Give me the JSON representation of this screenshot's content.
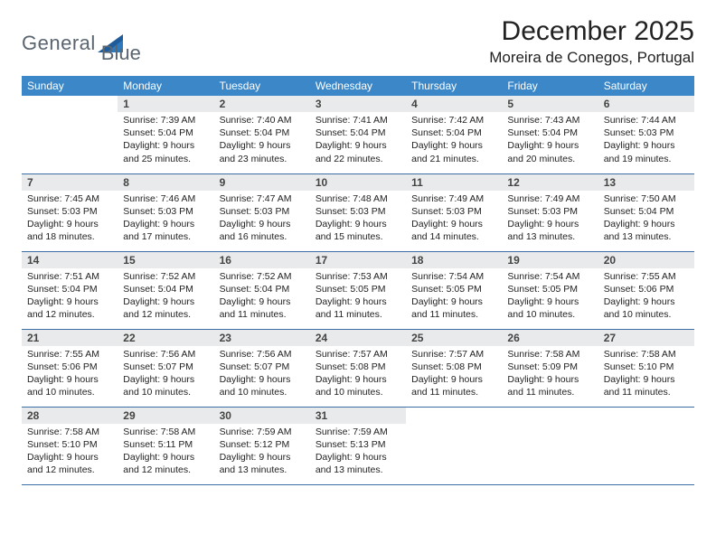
{
  "brand": {
    "name_left": "General",
    "name_right": "Blue"
  },
  "title": "December 2025",
  "location": "Moreira de Conegos, Portugal",
  "colors": {
    "header_bg": "#3b87c8",
    "header_fg": "#ffffff",
    "daynum_bg": "#e9eaeb",
    "row_border": "#3b6ea5",
    "logo_text": "#5a6570",
    "logo_tri1": "#1f5c99",
    "logo_tri2": "#2f79bd"
  },
  "weekdays": [
    "Sunday",
    "Monday",
    "Tuesday",
    "Wednesday",
    "Thursday",
    "Friday",
    "Saturday"
  ],
  "weeks": [
    [
      null,
      {
        "n": "1",
        "sr": "Sunrise: 7:39 AM",
        "ss": "Sunset: 5:04 PM",
        "d1": "Daylight: 9 hours",
        "d2": "and 25 minutes."
      },
      {
        "n": "2",
        "sr": "Sunrise: 7:40 AM",
        "ss": "Sunset: 5:04 PM",
        "d1": "Daylight: 9 hours",
        "d2": "and 23 minutes."
      },
      {
        "n": "3",
        "sr": "Sunrise: 7:41 AM",
        "ss": "Sunset: 5:04 PM",
        "d1": "Daylight: 9 hours",
        "d2": "and 22 minutes."
      },
      {
        "n": "4",
        "sr": "Sunrise: 7:42 AM",
        "ss": "Sunset: 5:04 PM",
        "d1": "Daylight: 9 hours",
        "d2": "and 21 minutes."
      },
      {
        "n": "5",
        "sr": "Sunrise: 7:43 AM",
        "ss": "Sunset: 5:04 PM",
        "d1": "Daylight: 9 hours",
        "d2": "and 20 minutes."
      },
      {
        "n": "6",
        "sr": "Sunrise: 7:44 AM",
        "ss": "Sunset: 5:03 PM",
        "d1": "Daylight: 9 hours",
        "d2": "and 19 minutes."
      }
    ],
    [
      {
        "n": "7",
        "sr": "Sunrise: 7:45 AM",
        "ss": "Sunset: 5:03 PM",
        "d1": "Daylight: 9 hours",
        "d2": "and 18 minutes."
      },
      {
        "n": "8",
        "sr": "Sunrise: 7:46 AM",
        "ss": "Sunset: 5:03 PM",
        "d1": "Daylight: 9 hours",
        "d2": "and 17 minutes."
      },
      {
        "n": "9",
        "sr": "Sunrise: 7:47 AM",
        "ss": "Sunset: 5:03 PM",
        "d1": "Daylight: 9 hours",
        "d2": "and 16 minutes."
      },
      {
        "n": "10",
        "sr": "Sunrise: 7:48 AM",
        "ss": "Sunset: 5:03 PM",
        "d1": "Daylight: 9 hours",
        "d2": "and 15 minutes."
      },
      {
        "n": "11",
        "sr": "Sunrise: 7:49 AM",
        "ss": "Sunset: 5:03 PM",
        "d1": "Daylight: 9 hours",
        "d2": "and 14 minutes."
      },
      {
        "n": "12",
        "sr": "Sunrise: 7:49 AM",
        "ss": "Sunset: 5:03 PM",
        "d1": "Daylight: 9 hours",
        "d2": "and 13 minutes."
      },
      {
        "n": "13",
        "sr": "Sunrise: 7:50 AM",
        "ss": "Sunset: 5:04 PM",
        "d1": "Daylight: 9 hours",
        "d2": "and 13 minutes."
      }
    ],
    [
      {
        "n": "14",
        "sr": "Sunrise: 7:51 AM",
        "ss": "Sunset: 5:04 PM",
        "d1": "Daylight: 9 hours",
        "d2": "and 12 minutes."
      },
      {
        "n": "15",
        "sr": "Sunrise: 7:52 AM",
        "ss": "Sunset: 5:04 PM",
        "d1": "Daylight: 9 hours",
        "d2": "and 12 minutes."
      },
      {
        "n": "16",
        "sr": "Sunrise: 7:52 AM",
        "ss": "Sunset: 5:04 PM",
        "d1": "Daylight: 9 hours",
        "d2": "and 11 minutes."
      },
      {
        "n": "17",
        "sr": "Sunrise: 7:53 AM",
        "ss": "Sunset: 5:05 PM",
        "d1": "Daylight: 9 hours",
        "d2": "and 11 minutes."
      },
      {
        "n": "18",
        "sr": "Sunrise: 7:54 AM",
        "ss": "Sunset: 5:05 PM",
        "d1": "Daylight: 9 hours",
        "d2": "and 11 minutes."
      },
      {
        "n": "19",
        "sr": "Sunrise: 7:54 AM",
        "ss": "Sunset: 5:05 PM",
        "d1": "Daylight: 9 hours",
        "d2": "and 10 minutes."
      },
      {
        "n": "20",
        "sr": "Sunrise: 7:55 AM",
        "ss": "Sunset: 5:06 PM",
        "d1": "Daylight: 9 hours",
        "d2": "and 10 minutes."
      }
    ],
    [
      {
        "n": "21",
        "sr": "Sunrise: 7:55 AM",
        "ss": "Sunset: 5:06 PM",
        "d1": "Daylight: 9 hours",
        "d2": "and 10 minutes."
      },
      {
        "n": "22",
        "sr": "Sunrise: 7:56 AM",
        "ss": "Sunset: 5:07 PM",
        "d1": "Daylight: 9 hours",
        "d2": "and 10 minutes."
      },
      {
        "n": "23",
        "sr": "Sunrise: 7:56 AM",
        "ss": "Sunset: 5:07 PM",
        "d1": "Daylight: 9 hours",
        "d2": "and 10 minutes."
      },
      {
        "n": "24",
        "sr": "Sunrise: 7:57 AM",
        "ss": "Sunset: 5:08 PM",
        "d1": "Daylight: 9 hours",
        "d2": "and 10 minutes."
      },
      {
        "n": "25",
        "sr": "Sunrise: 7:57 AM",
        "ss": "Sunset: 5:08 PM",
        "d1": "Daylight: 9 hours",
        "d2": "and 11 minutes."
      },
      {
        "n": "26",
        "sr": "Sunrise: 7:58 AM",
        "ss": "Sunset: 5:09 PM",
        "d1": "Daylight: 9 hours",
        "d2": "and 11 minutes."
      },
      {
        "n": "27",
        "sr": "Sunrise: 7:58 AM",
        "ss": "Sunset: 5:10 PM",
        "d1": "Daylight: 9 hours",
        "d2": "and 11 minutes."
      }
    ],
    [
      {
        "n": "28",
        "sr": "Sunrise: 7:58 AM",
        "ss": "Sunset: 5:10 PM",
        "d1": "Daylight: 9 hours",
        "d2": "and 12 minutes."
      },
      {
        "n": "29",
        "sr": "Sunrise: 7:58 AM",
        "ss": "Sunset: 5:11 PM",
        "d1": "Daylight: 9 hours",
        "d2": "and 12 minutes."
      },
      {
        "n": "30",
        "sr": "Sunrise: 7:59 AM",
        "ss": "Sunset: 5:12 PM",
        "d1": "Daylight: 9 hours",
        "d2": "and 13 minutes."
      },
      {
        "n": "31",
        "sr": "Sunrise: 7:59 AM",
        "ss": "Sunset: 5:13 PM",
        "d1": "Daylight: 9 hours",
        "d2": "and 13 minutes."
      },
      null,
      null,
      null
    ]
  ]
}
